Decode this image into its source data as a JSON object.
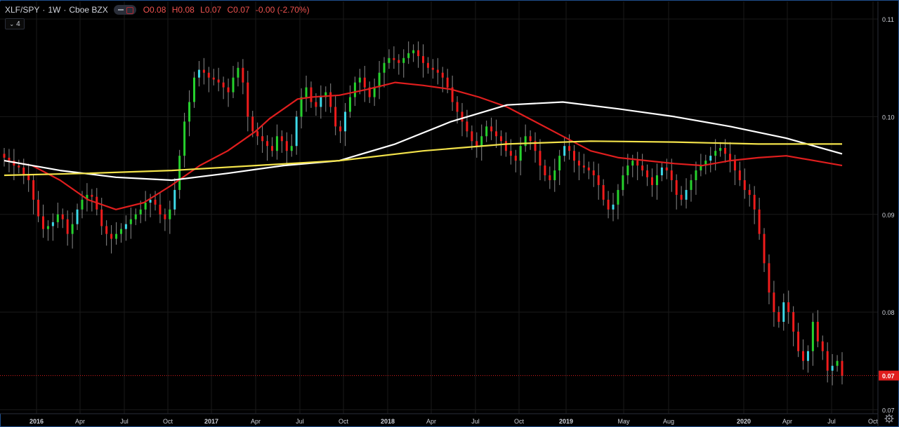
{
  "legend": {
    "symbol": "XLF/SPY",
    "sep1": "·",
    "interval": "1W",
    "sep2": "·",
    "exchange": "Cboe BZX",
    "open": "O0.08",
    "high": "H0.08",
    "low": "L0.07",
    "close": "C0.07",
    "change": "-0.00 (-2.70%)"
  },
  "indicators_count": "4",
  "colors": {
    "background": "#000000",
    "up": "#26d12d",
    "down": "#ef1c1c",
    "up_alt": "#3dd9e8",
    "ma_red": "#e01e1e",
    "ma_white": "#ffffff",
    "ma_yellow": "#f2e24a",
    "price_label": "#e01e1e"
  },
  "chart_data": {
    "type": "candlestick",
    "title": "XLF/SPY · 1W · Cboe BZX",
    "x_ticks": [
      "2016",
      "Apr",
      "Jul",
      "Oct",
      "2017",
      "Apr",
      "Jul",
      "Oct",
      "2018",
      "Apr",
      "Jul",
      "Oct",
      "2019",
      "May",
      "Aug",
      "2020",
      "Apr",
      "Jul",
      "Oct"
    ],
    "y_ticks": [
      "0.11",
      "0.10",
      "0.09",
      "0.08",
      "0.07"
    ],
    "y_tick_values": [
      0.11,
      0.1,
      0.09,
      0.08,
      0.07
    ],
    "ylim": [
      0.0696,
      0.1118
    ],
    "last_price_label": "0.07",
    "last_price": 0.0735,
    "grid": true,
    "ohlc_close_series": [
      0.0958,
      0.0955,
      0.095,
      0.0948,
      0.094,
      0.0935,
      0.0915,
      0.0898,
      0.0885,
      0.0888,
      0.0892,
      0.09,
      0.0895,
      0.088,
      0.089,
      0.0905,
      0.0915,
      0.092,
      0.0918,
      0.0905,
      0.0888,
      0.088,
      0.0875,
      0.088,
      0.0885,
      0.089,
      0.0895,
      0.09,
      0.0905,
      0.0912,
      0.0915,
      0.091,
      0.09,
      0.0895,
      0.0905,
      0.0925,
      0.096,
      0.0995,
      0.1015,
      0.104,
      0.1048,
      0.1045,
      0.104,
      0.1038,
      0.1035,
      0.103,
      0.1025,
      0.104,
      0.105,
      0.1035,
      0.1,
      0.0985,
      0.098,
      0.0975,
      0.097,
      0.0965,
      0.098,
      0.0975,
      0.0965,
      0.097,
      0.1,
      0.102,
      0.103,
      0.1015,
      0.101,
      0.102,
      0.1025,
      0.101,
      0.099,
      0.0985,
      0.1005,
      0.102,
      0.1035,
      0.104,
      0.103,
      0.102,
      0.103,
      0.1045,
      0.1055,
      0.106,
      0.1058,
      0.1055,
      0.106,
      0.1065,
      0.1068,
      0.1062,
      0.1055,
      0.105,
      0.1048,
      0.1045,
      0.104,
      0.103,
      0.1015,
      0.1005,
      0.0995,
      0.0985,
      0.0975,
      0.097,
      0.098,
      0.099,
      0.0985,
      0.098,
      0.0975,
      0.0965,
      0.096,
      0.0955,
      0.097,
      0.098,
      0.0975,
      0.0965,
      0.095,
      0.094,
      0.0935,
      0.0945,
      0.096,
      0.097,
      0.0965,
      0.0955,
      0.095,
      0.0948,
      0.0945,
      0.094,
      0.093,
      0.0915,
      0.0905,
      0.091,
      0.0925,
      0.094,
      0.095,
      0.0955,
      0.095,
      0.0945,
      0.0938,
      0.093,
      0.094,
      0.0948,
      0.0945,
      0.0935,
      0.092,
      0.0915,
      0.0925,
      0.0935,
      0.0945,
      0.095,
      0.0955,
      0.096,
      0.0965,
      0.0968,
      0.0962,
      0.0955,
      0.0945,
      0.0935,
      0.0925,
      0.092,
      0.0905,
      0.088,
      0.085,
      0.082,
      0.08,
      0.079,
      0.081,
      0.08,
      0.078,
      0.076,
      0.075,
      0.076,
      0.079,
      0.077,
      0.076,
      0.074,
      0.0745,
      0.075,
      0.0735
    ],
    "moving_averages": [
      {
        "color": "red",
        "points": [
          [
            0,
            0.0955
          ],
          [
            20,
            0.095
          ],
          [
            40,
            0.0935
          ],
          [
            60,
            0.0915
          ],
          [
            80,
            0.0905
          ],
          [
            100,
            0.0912
          ],
          [
            120,
            0.093
          ],
          [
            140,
            0.095
          ],
          [
            160,
            0.0965
          ],
          [
            170,
            0.0975
          ],
          [
            180,
            0.0985
          ],
          [
            190,
            0.0998
          ],
          [
            200,
            0.1008
          ],
          [
            210,
            0.1018
          ],
          [
            220,
            0.102
          ],
          [
            240,
            0.1022
          ],
          [
            260,
            0.1028
          ],
          [
            280,
            0.1035
          ],
          [
            300,
            0.1032
          ],
          [
            320,
            0.1028
          ],
          [
            340,
            0.102
          ],
          [
            360,
            0.101
          ],
          [
            380,
            0.0995
          ],
          [
            400,
            0.098
          ],
          [
            420,
            0.0965
          ],
          [
            440,
            0.0958
          ],
          [
            460,
            0.0955
          ],
          [
            480,
            0.0952
          ],
          [
            500,
            0.095
          ],
          [
            520,
            0.0955
          ],
          [
            540,
            0.0958
          ],
          [
            560,
            0.096
          ],
          [
            580,
            0.0955
          ],
          [
            600,
            0.095
          ]
        ]
      },
      {
        "color": "white",
        "points": [
          [
            0,
            0.0955
          ],
          [
            40,
            0.0945
          ],
          [
            80,
            0.0938
          ],
          [
            120,
            0.0935
          ],
          [
            160,
            0.0942
          ],
          [
            200,
            0.095
          ],
          [
            240,
            0.0955
          ],
          [
            280,
            0.0972
          ],
          [
            320,
            0.0995
          ],
          [
            360,
            0.1012
          ],
          [
            400,
            0.1015
          ],
          [
            440,
            0.1008
          ],
          [
            480,
            0.1
          ],
          [
            520,
            0.099
          ],
          [
            560,
            0.0978
          ],
          [
            600,
            0.0962
          ]
        ]
      },
      {
        "color": "yellow",
        "points": [
          [
            0,
            0.094
          ],
          [
            60,
            0.0942
          ],
          [
            120,
            0.0945
          ],
          [
            180,
            0.095
          ],
          [
            240,
            0.0955
          ],
          [
            300,
            0.0965
          ],
          [
            360,
            0.0972
          ],
          [
            420,
            0.0975
          ],
          [
            480,
            0.0974
          ],
          [
            540,
            0.0972
          ],
          [
            600,
            0.0972
          ]
        ]
      }
    ]
  }
}
